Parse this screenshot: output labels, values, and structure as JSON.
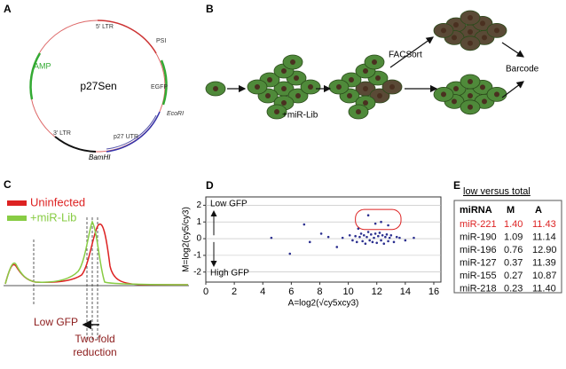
{
  "figure": {
    "a": {
      "label": "A",
      "plasmid": "p27Sen",
      "features": [
        "5' LTR",
        "PSI",
        "EGFP",
        "EcoRI",
        "p27 UTR",
        "BamHI",
        "3' LTR",
        "AMP"
      ]
    },
    "b": {
      "label": "B",
      "texts": [
        "FACSort",
        "Barcode",
        "+miR-Lib"
      ]
    },
    "c": {
      "label": "C",
      "legend": [
        "Uninfected",
        "+miR-Lib"
      ],
      "annotations": [
        "Low GFP",
        "Two-fold",
        "reduction"
      ]
    },
    "d": {
      "label": "D"
    },
    "e": {
      "label": "E",
      "caption": "low versus total",
      "table": {
        "header": [
          "miRNA",
          "M",
          "A"
        ],
        "rows": [
          [
            "miR-221",
            "1.40",
            "11.43"
          ],
          [
            "miR-190",
            "1.09",
            "11.14"
          ],
          [
            "miR-196",
            "0.76",
            "12.90"
          ],
          [
            "miR-127",
            "0.37",
            "11.39"
          ],
          [
            "miR-155",
            "0.27",
            "10.87"
          ],
          [
            "miR-218",
            "0.23",
            "11.40"
          ]
        ]
      }
    }
  },
  "chart_data": {
    "type": "scatter",
    "xlabel": "A=log2(√cy5xcy3)",
    "ylabel": "M=log2(cy5/cy3)",
    "annotations": [
      "Low GFP",
      "High GFP"
    ],
    "color": "#2b2f8f",
    "x": [
      4.6,
      5.9,
      6.9,
      7.3,
      8.1,
      8.6,
      9.2,
      9.6,
      10.1,
      10.3,
      10.5,
      10.6,
      10.8,
      10.9,
      11.0,
      11.1,
      11.2,
      11.3,
      11.4,
      11.5,
      11.6,
      11.7,
      11.8,
      11.9,
      12.0,
      12.1,
      12.2,
      12.3,
      12.4,
      12.5,
      12.6,
      12.7,
      12.8,
      12.9,
      13.0,
      13.2,
      13.4,
      13.6,
      14.0,
      14.6,
      11.4,
      11.9,
      12.3,
      12.8,
      10.7
    ],
    "y": [
      0.05,
      -0.9,
      0.85,
      -0.2,
      0.3,
      0.1,
      -0.5,
      0.05,
      0.2,
      -0.1,
      0.15,
      -0.2,
      0.1,
      0.3,
      -0.15,
      0.2,
      -0.3,
      0.1,
      0.4,
      -0.1,
      0.25,
      -0.2,
      0.05,
      0.3,
      -0.25,
      0.15,
      0.35,
      -0.1,
      0.2,
      -0.3,
      0.1,
      0.25,
      -0.15,
      0.05,
      0.2,
      -0.2,
      0.1,
      0.05,
      -0.1,
      0.05,
      1.4,
      0.9,
      1.0,
      0.8,
      0.6
    ],
    "xlim": [
      0,
      16.5
    ],
    "ylim": [
      -2.6,
      2.5
    ],
    "xticks": [
      0,
      2,
      4,
      6,
      8,
      10,
      12,
      14,
      16
    ],
    "yticks": [
      -2,
      -1,
      0,
      1,
      2
    ],
    "grid": true
  }
}
